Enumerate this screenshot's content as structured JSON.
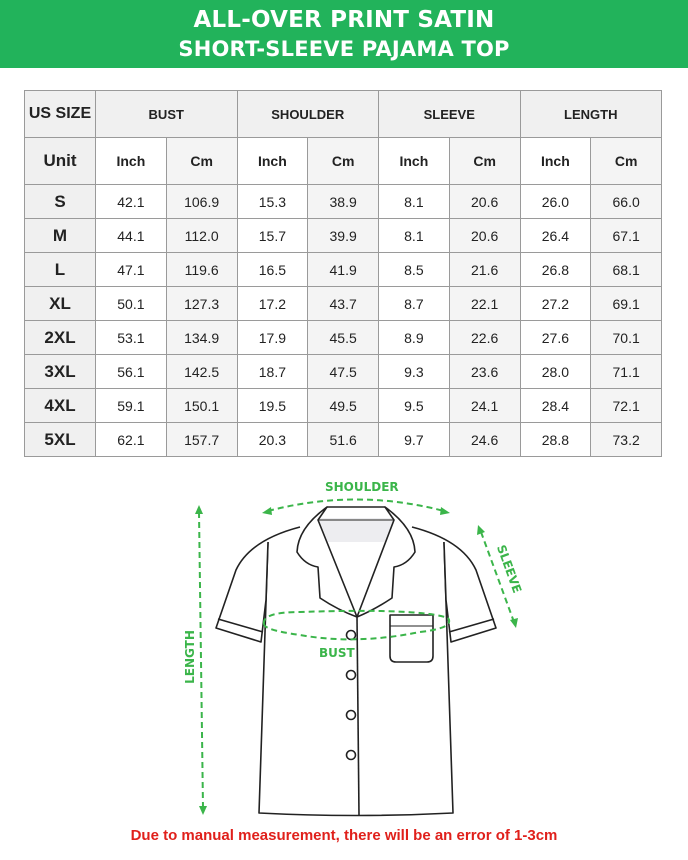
{
  "title": {
    "line1": "ALL-OVER PRINT SATIN",
    "line2": "SHORT-SLEEVE PAJAMA TOP"
  },
  "colors": {
    "brand_green": "#22b35b",
    "measure_green": "#3bb54a",
    "note_red": "#e0201b"
  },
  "table": {
    "size_header": "US SIZE",
    "unit_header": "Unit",
    "groups": [
      "BUST",
      "SHOULDER",
      "SLEEVE",
      "LENGTH"
    ],
    "units": [
      "Inch",
      "Cm",
      "Inch",
      "Cm",
      "Inch",
      "Cm",
      "Inch",
      "Cm"
    ],
    "rows": [
      {
        "size": "S",
        "values": [
          "42.1",
          "106.9",
          "15.3",
          "38.9",
          "8.1",
          "20.6",
          "26.0",
          "66.0"
        ]
      },
      {
        "size": "M",
        "values": [
          "44.1",
          "112.0",
          "15.7",
          "39.9",
          "8.1",
          "20.6",
          "26.4",
          "67.1"
        ]
      },
      {
        "size": "L",
        "values": [
          "47.1",
          "119.6",
          "16.5",
          "41.9",
          "8.5",
          "21.6",
          "26.8",
          "68.1"
        ]
      },
      {
        "size": "XL",
        "values": [
          "50.1",
          "127.3",
          "17.2",
          "43.7",
          "8.7",
          "22.1",
          "27.2",
          "69.1"
        ]
      },
      {
        "size": "2XL",
        "values": [
          "53.1",
          "134.9",
          "17.9",
          "45.5",
          "8.9",
          "22.6",
          "27.6",
          "70.1"
        ]
      },
      {
        "size": "3XL",
        "values": [
          "56.1",
          "142.5",
          "18.7",
          "47.5",
          "9.3",
          "23.6",
          "28.0",
          "71.1"
        ]
      },
      {
        "size": "4XL",
        "values": [
          "59.1",
          "150.1",
          "19.5",
          "49.5",
          "9.5",
          "24.1",
          "28.4",
          "72.1"
        ]
      },
      {
        "size": "5XL",
        "values": [
          "62.1",
          "157.7",
          "20.3",
          "51.6",
          "9.7",
          "24.6",
          "28.8",
          "73.2"
        ]
      }
    ]
  },
  "diagram": {
    "shoulder": "SHOULDER",
    "sleeve": "SLEEVE",
    "bust": "BUST",
    "length": "LENGTH"
  },
  "note": "Due to manual measurement, there will be an error of 1-3cm"
}
